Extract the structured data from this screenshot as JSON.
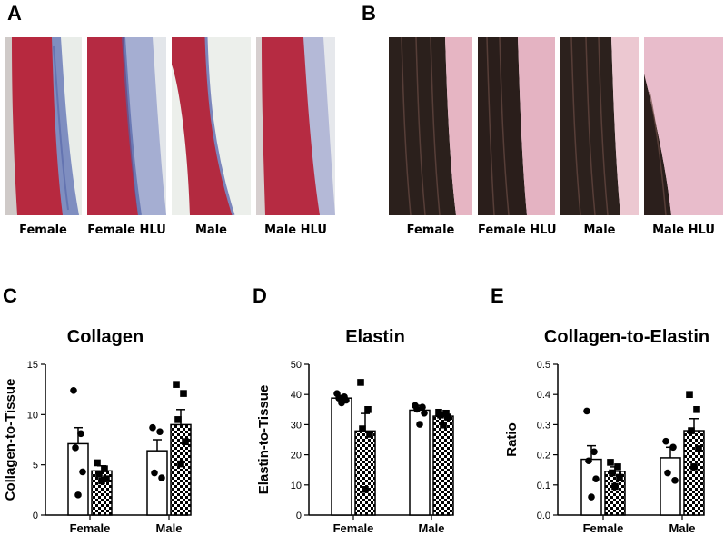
{
  "panels": {
    "A": {
      "label": "A",
      "stain_colors": {
        "tissue": "#b8283f",
        "collagen": "#6f7db8",
        "background": "#eef0ec"
      },
      "images": [
        {
          "label": "Female"
        },
        {
          "label": "Female HLU"
        },
        {
          "label": "Male"
        },
        {
          "label": "Male HLU"
        }
      ]
    },
    "B": {
      "label": "B",
      "stain_colors": {
        "tissue": "#2a1f1c",
        "collagen": "#e8b9c6",
        "background": "#f4eef0"
      },
      "images": [
        {
          "label": "Female"
        },
        {
          "label": "Female HLU"
        },
        {
          "label": "Male"
        },
        {
          "label": "Male HLU"
        }
      ]
    }
  },
  "chart_data": [
    {
      "panel": "C",
      "type": "bar",
      "title": "Collagen",
      "ylabel": "Collagen-to-Tissue",
      "xlabel": "",
      "ylim": [
        0,
        15
      ],
      "yticks": [
        0,
        5,
        10,
        15
      ],
      "categories": [
        "Female",
        "Male"
      ],
      "series": [
        {
          "pattern": "open",
          "marker": "circle",
          "values": [
            7.1,
            6.4
          ],
          "sem": [
            1.6,
            1.1
          ],
          "points": [
            [
              12.4,
              8.1,
              6.7,
              4.3,
              2.0
            ],
            [
              8.7,
              8.3,
              4.2,
              3.7
            ]
          ]
        },
        {
          "pattern": "checker",
          "marker": "square",
          "values": [
            4.4,
            9.0
          ],
          "sem": [
            0.5,
            1.5
          ],
          "points": [
            [
              5.2,
              4.6,
              4.1,
              3.6,
              3.4
            ],
            [
              13.0,
              12.1,
              9.5,
              7.3,
              5.1
            ]
          ]
        }
      ]
    },
    {
      "panel": "D",
      "type": "bar",
      "title": "Elastin",
      "ylabel": "Elastin-to-Tissue",
      "xlabel": "",
      "ylim": [
        0,
        50
      ],
      "yticks": [
        0,
        10,
        20,
        30,
        40,
        50
      ],
      "categories": [
        "Female",
        "Male"
      ],
      "series": [
        {
          "pattern": "open",
          "marker": "circle",
          "values": [
            38.8,
            34.8
          ],
          "sem": [
            0.9,
            1.6
          ],
          "points": [
            [
              40.3,
              39.2,
              38.8,
              38.1,
              37.2
            ],
            [
              36.3,
              35.8,
              35.1,
              33.8,
              30.1
            ]
          ]
        },
        {
          "pattern": "checker",
          "marker": "square",
          "values": [
            27.9,
            32.8
          ],
          "sem": [
            5.8,
            1.0
          ],
          "points": [
            [
              44.0,
              35.0,
              28.6,
              26.8,
              8.5
            ],
            [
              34.1,
              33.8,
              33.2,
              32.5,
              29.9
            ]
          ]
        }
      ]
    },
    {
      "panel": "E",
      "type": "bar",
      "title": "Collagen-to-Elastin",
      "ylabel": "Ratio",
      "xlabel": "",
      "ylim": [
        0,
        0.5
      ],
      "yticks": [
        0.0,
        0.1,
        0.2,
        0.3,
        0.4,
        0.5
      ],
      "categories": [
        "Female",
        "Male"
      ],
      "series": [
        {
          "pattern": "open",
          "marker": "circle",
          "values": [
            0.185,
            0.19
          ],
          "sem": [
            0.045,
            0.035
          ],
          "points": [
            [
              0.345,
              0.21,
              0.18,
              0.12,
              0.06
            ],
            [
              0.245,
              0.225,
              0.14,
              0.115
            ]
          ]
        },
        {
          "pattern": "checker",
          "marker": "square",
          "values": [
            0.145,
            0.28
          ],
          "sem": [
            0.015,
            0.04
          ],
          "points": [
            [
              0.175,
              0.16,
              0.14,
              0.125,
              0.095
            ],
            [
              0.4,
              0.35,
              0.28,
              0.22,
              0.16
            ]
          ]
        }
      ]
    }
  ]
}
